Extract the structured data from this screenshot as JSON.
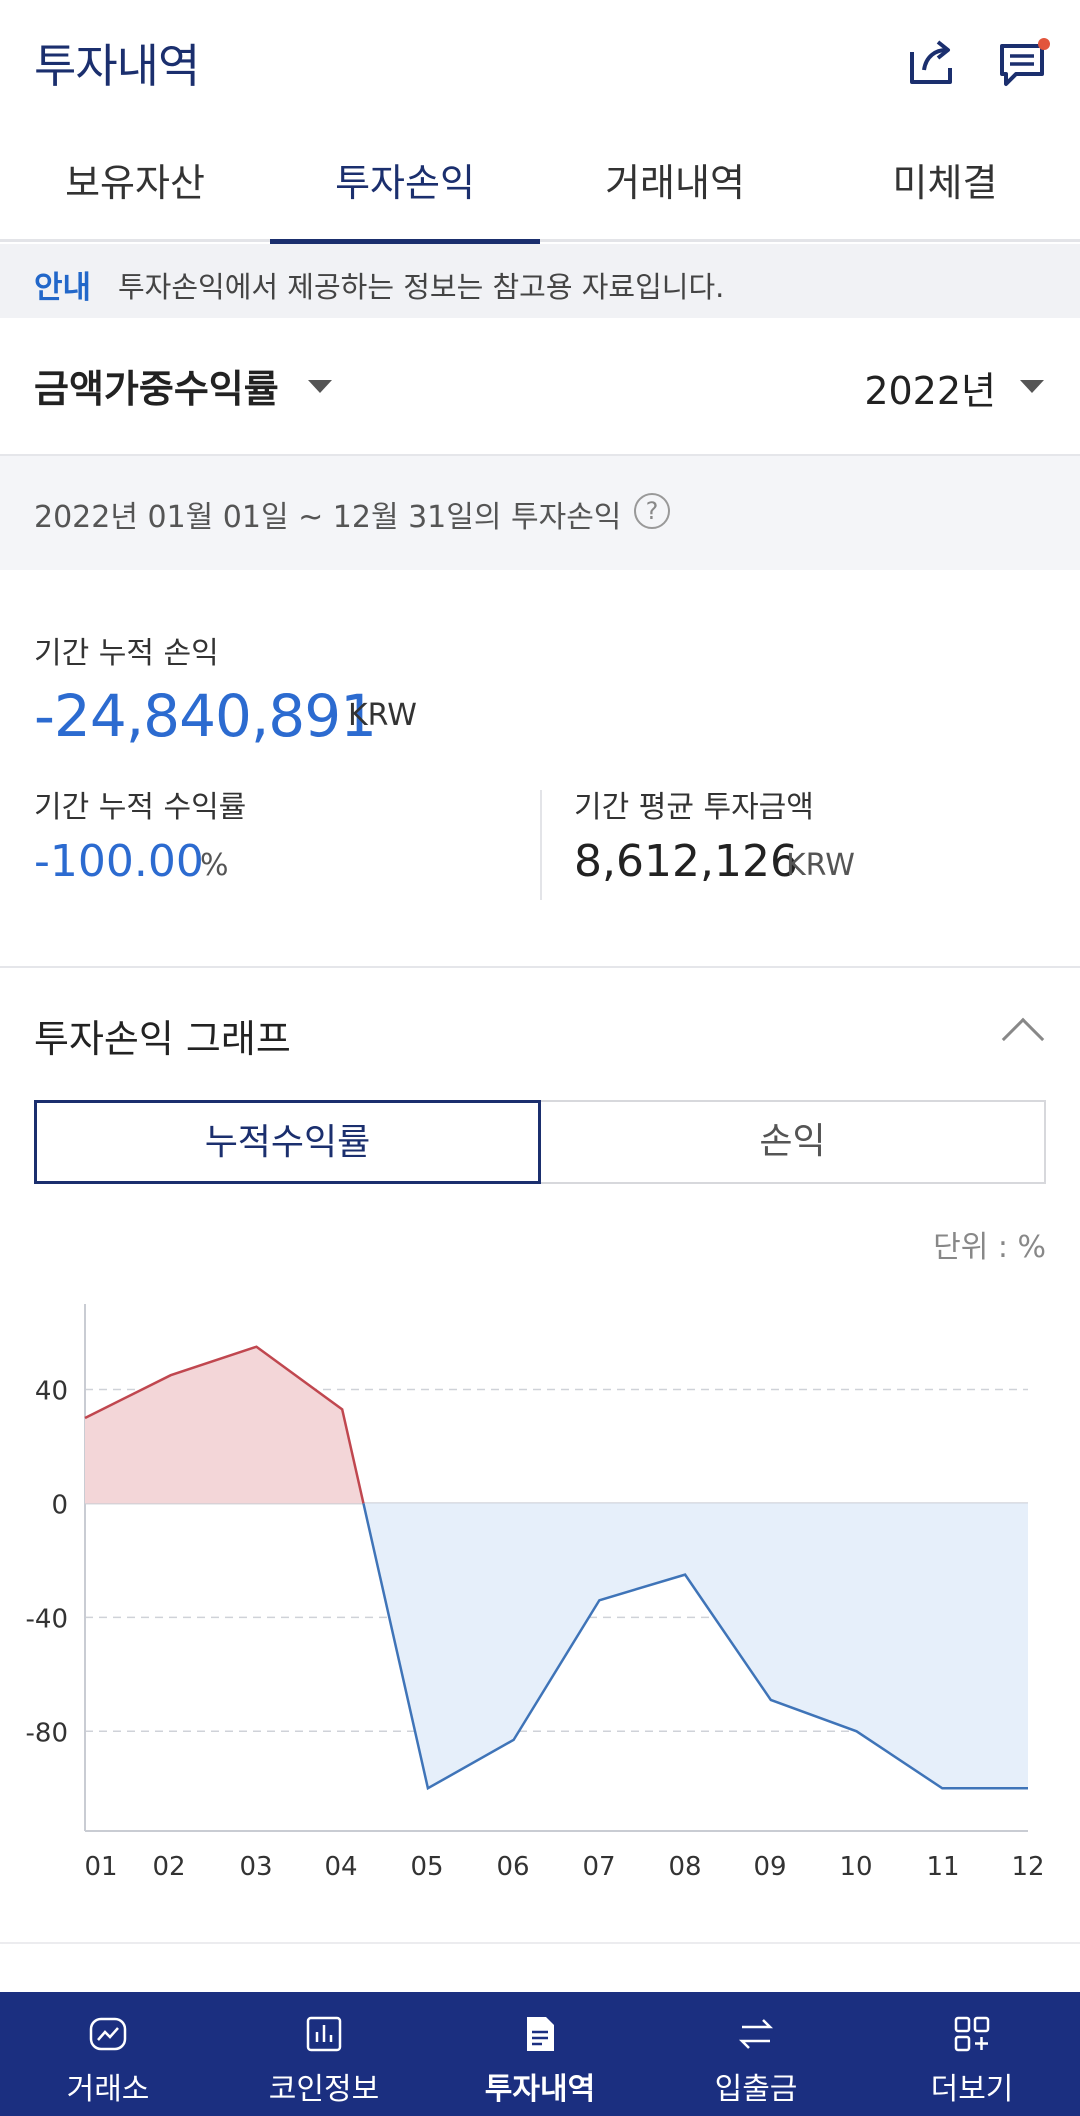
{
  "header": {
    "title": "투자내역"
  },
  "tabs": [
    "보유자산",
    "투자손익",
    "거래내역",
    "미체결"
  ],
  "notice": {
    "tag": "안내",
    "text": "투자손익에서 제공하는 정보는 참고용 자료입니다."
  },
  "selectors": {
    "method": "금액가중수익률",
    "year": "2022년"
  },
  "period": {
    "text": "2022년 01월 01일 ~ 12월 31일의 투자손익",
    "help": "?"
  },
  "summary": {
    "cum_pnl_label": "기간 누적 손익",
    "cum_pnl_value": "-24,840,891",
    "cum_pnl_unit": "KRW",
    "cum_rate_label": "기간 누적 수익률",
    "cum_rate_value": "-100.00",
    "cum_rate_unit": "%",
    "avg_invest_label": "기간 평균 투자금액",
    "avg_invest_value": "8,612,126",
    "avg_invest_unit": "KRW"
  },
  "graph": {
    "title": "투자손익 그래프",
    "toggle_left": "누적수익률",
    "toggle_right": "손익",
    "unit_note": "단위 : %"
  },
  "chart_data": {
    "type": "area",
    "categories": [
      "01",
      "02",
      "03",
      "04",
      "05",
      "06",
      "07",
      "08",
      "09",
      "10",
      "11",
      "12"
    ],
    "values": [
      30,
      45,
      55,
      33,
      -100,
      -83,
      -34,
      -25,
      -69,
      -80,
      -100,
      -100
    ],
    "yticks": [
      40,
      0,
      -40,
      -80
    ],
    "ylim": [
      -115,
      70
    ],
    "grid": "dashed-horizontal",
    "colors": {
      "positive_line": "#c0474f",
      "positive_fill": "#f3d6d8",
      "negative_line": "#3f74b8",
      "negative_fill": "#e6effa"
    }
  },
  "nav": {
    "items": [
      {
        "label": "거래소",
        "icon": "chart-icon"
      },
      {
        "label": "코인정보",
        "icon": "bar-chart-icon"
      },
      {
        "label": "투자내역",
        "icon": "document-icon"
      },
      {
        "label": "입출금",
        "icon": "transfer-icon"
      },
      {
        "label": "더보기",
        "icon": "grid-plus-icon"
      }
    ]
  }
}
